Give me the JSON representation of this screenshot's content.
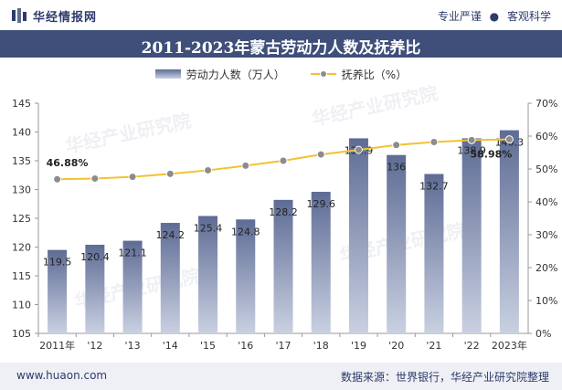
{
  "header": {
    "brand": "华经情报网",
    "tagline_left": "专业严谨",
    "tagline_sep": "●",
    "tagline_right": "客观科学"
  },
  "watermarks": [
    "华经产业研究院",
    "华经产业研究院",
    "华经产业研究院",
    "华经产业研究院"
  ],
  "footer": {
    "site": "www.huaon.com",
    "source": "数据来源：世界银行，华经产业研究院整理"
  },
  "colors": {
    "title_bg": "#3f4f7a",
    "bar_top": "#5e6c95",
    "bar_bottom": "#c9d0e1",
    "line": "#f2c230",
    "marker": "#8c8c8c"
  },
  "chart_data": {
    "type": "bar",
    "title": "2011-2023年蒙古劳动力人数及抚养比",
    "categories": [
      "2011年",
      "'12",
      "'13",
      "'14",
      "'15",
      "'16",
      "'17",
      "'18",
      "'19",
      "'20",
      "'21",
      "'22",
      "2023年"
    ],
    "series": [
      {
        "name": "劳动力人数（万人）",
        "type": "bar",
        "axis": "left",
        "values": [
          119.5,
          120.4,
          121.1,
          124.2,
          125.4,
          124.8,
          128.2,
          129.6,
          138.9,
          136,
          132.7,
          138.9,
          140.3
        ],
        "labels": [
          "119.5",
          "120.4",
          "121.1",
          "124.2",
          "125.4",
          "124.8",
          "128.2",
          "129.6",
          "138.9",
          "136",
          "132.7",
          "138.9",
          "140.3"
        ]
      },
      {
        "name": "抚养比（%）",
        "type": "line",
        "axis": "right",
        "values": [
          46.88,
          47.1,
          47.6,
          48.5,
          49.6,
          51.0,
          52.5,
          54.4,
          55.8,
          57.3,
          58.2,
          58.8,
          58.98
        ],
        "labels": [
          "46.88%",
          "",
          "",
          "",
          "",
          "",
          "",
          "",
          "",
          "",
          "",
          "",
          "58.98%"
        ]
      }
    ],
    "ylim_left": [
      105,
      145
    ],
    "yticks_left": [
      "105",
      "110",
      "115",
      "120",
      "125",
      "130",
      "135",
      "140",
      "145"
    ],
    "ylim_right": [
      0,
      70
    ],
    "yticks_right": [
      "0%",
      "10%",
      "20%",
      "30%",
      "40%",
      "50%",
      "60%",
      "70%"
    ],
    "grid": false,
    "legend_position": "top-center"
  }
}
